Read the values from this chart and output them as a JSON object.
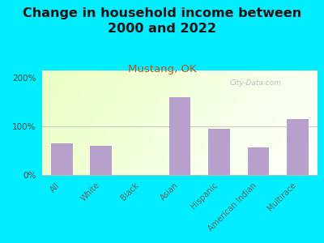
{
  "title": "Change in household income between\n2000 and 2022",
  "subtitle": "Mustang, OK",
  "categories": [
    "All",
    "White",
    "Black",
    "Asian",
    "Hispanic",
    "American Indian",
    "Multirace"
  ],
  "values": [
    65,
    60,
    0,
    160,
    95,
    57,
    115
  ],
  "bar_color": "#b8a0cc",
  "background_outer": "#00eeff",
  "title_fontsize": 11.5,
  "subtitle_fontsize": 9.5,
  "subtitle_color": "#b05a20",
  "yticks": [
    0,
    100,
    200
  ],
  "ytick_labels": [
    "0%",
    "100%",
    "200%"
  ],
  "ylim": [
    0,
    215
  ],
  "watermark": "City-Data.com",
  "watermark_color": "#aaaaaa"
}
